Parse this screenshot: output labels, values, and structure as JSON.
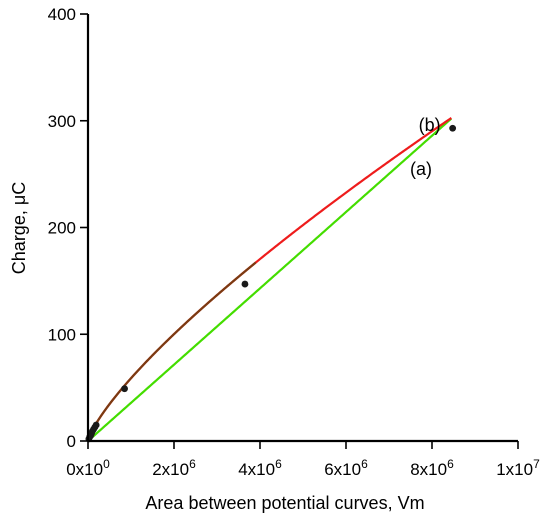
{
  "chart_data": {
    "type": "scatter",
    "xlabel": "Area between potential curves, Vm",
    "ylabel_main": "Charge, ",
    "ylabel_unit": "μC",
    "xlim": [
      0,
      10000000
    ],
    "ylim": [
      0,
      400
    ],
    "x_ticks": [
      0,
      2000000,
      4000000,
      6000000,
      8000000,
      10000000
    ],
    "x_tick_labels": [
      {
        "mantissa": "0x10",
        "exp": "0"
      },
      {
        "mantissa": "2x10",
        "exp": "6"
      },
      {
        "mantissa": "4x10",
        "exp": "6"
      },
      {
        "mantissa": "6x10",
        "exp": "6"
      },
      {
        "mantissa": "8x10",
        "exp": "6"
      },
      {
        "mantissa": "1x10",
        "exp": "7"
      }
    ],
    "y_ticks": [
      0,
      100,
      200,
      300,
      400
    ],
    "y_tick_labels": [
      "0",
      "100",
      "200",
      "300",
      "400"
    ],
    "points": [
      {
        "x": 20000,
        "y": 2
      },
      {
        "x": 40000,
        "y": 4
      },
      {
        "x": 60000,
        "y": 5
      },
      {
        "x": 80000,
        "y": 7
      },
      {
        "x": 100000,
        "y": 9
      },
      {
        "x": 130000,
        "y": 11
      },
      {
        "x": 160000,
        "y": 13
      },
      {
        "x": 190000,
        "y": 15
      },
      {
        "x": 850000,
        "y": 49
      },
      {
        "x": 3650000,
        "y": 147
      },
      {
        "x": 8480000,
        "y": 293
      }
    ],
    "series": [
      {
        "label": "(a)",
        "color": "#ee1c1c",
        "model": "power",
        "a": 0.001456,
        "b": 0.7677,
        "x_range": [
          0,
          8450000
        ]
      },
      {
        "label": "(b)",
        "color": "#44dd00",
        "model": "linear",
        "slope": 3.575e-05,
        "x_range": [
          0,
          8450000
        ]
      }
    ],
    "fit_overlay_color": "#7a3b12",
    "annotations": [
      {
        "text": "(b)",
        "anchor_x": 8200000,
        "anchor_y": 296
      },
      {
        "text": "(a)",
        "anchor_x": 8000000,
        "anchor_y": 255
      }
    ]
  }
}
